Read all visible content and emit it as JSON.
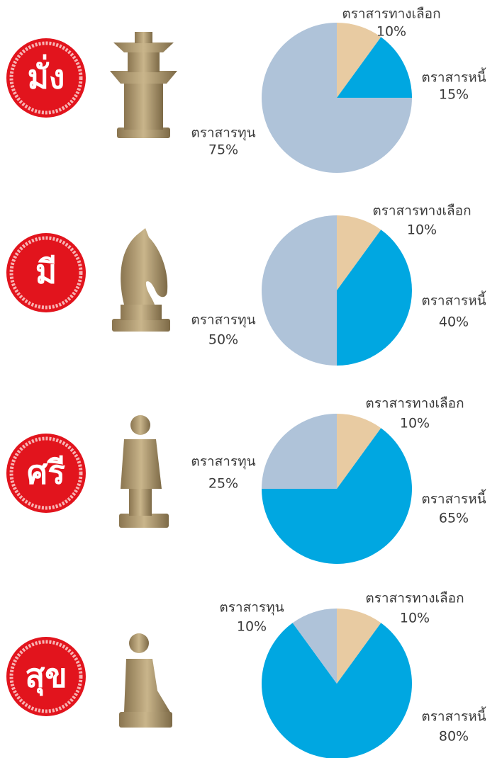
{
  "chart_data": [
    {
      "type": "pie",
      "title": "มั่ง",
      "categories": [
        "ตราสารทางเลือก",
        "ตราสารหนี้",
        "ตราสารทุน"
      ],
      "values": [
        10,
        15,
        75
      ],
      "value_labels": [
        "10%",
        "15%",
        "75%"
      ],
      "colors": [
        "#e8cba2",
        "#00a7e1",
        "#afc3d9"
      ]
    },
    {
      "type": "pie",
      "title": "มี",
      "categories": [
        "ตราสารทางเลือก",
        "ตราสารหนี้",
        "ตราสารทุน"
      ],
      "values": [
        10,
        40,
        50
      ],
      "value_labels": [
        "10%",
        "40%",
        "50%"
      ],
      "colors": [
        "#e8cba2",
        "#00a7e1",
        "#afc3d9"
      ]
    },
    {
      "type": "pie",
      "title": "ศรี",
      "categories": [
        "ตราสารทางเลือก",
        "ตราสารหนี้",
        "ตราสารทุน"
      ],
      "values": [
        10,
        65,
        25
      ],
      "value_labels": [
        "10%",
        "65%",
        "25%"
      ],
      "colors": [
        "#e8cba2",
        "#00a7e1",
        "#afc3d9"
      ]
    },
    {
      "type": "pie",
      "title": "สุข",
      "categories": [
        "ตราสารทางเลือก",
        "ตราสารหนี้",
        "ตราสารทุน"
      ],
      "values": [
        10,
        80,
        10
      ],
      "value_labels": [
        "10%",
        "80%",
        "10%"
      ],
      "colors": [
        "#e8cba2",
        "#00a7e1",
        "#afc3d9"
      ]
    }
  ]
}
